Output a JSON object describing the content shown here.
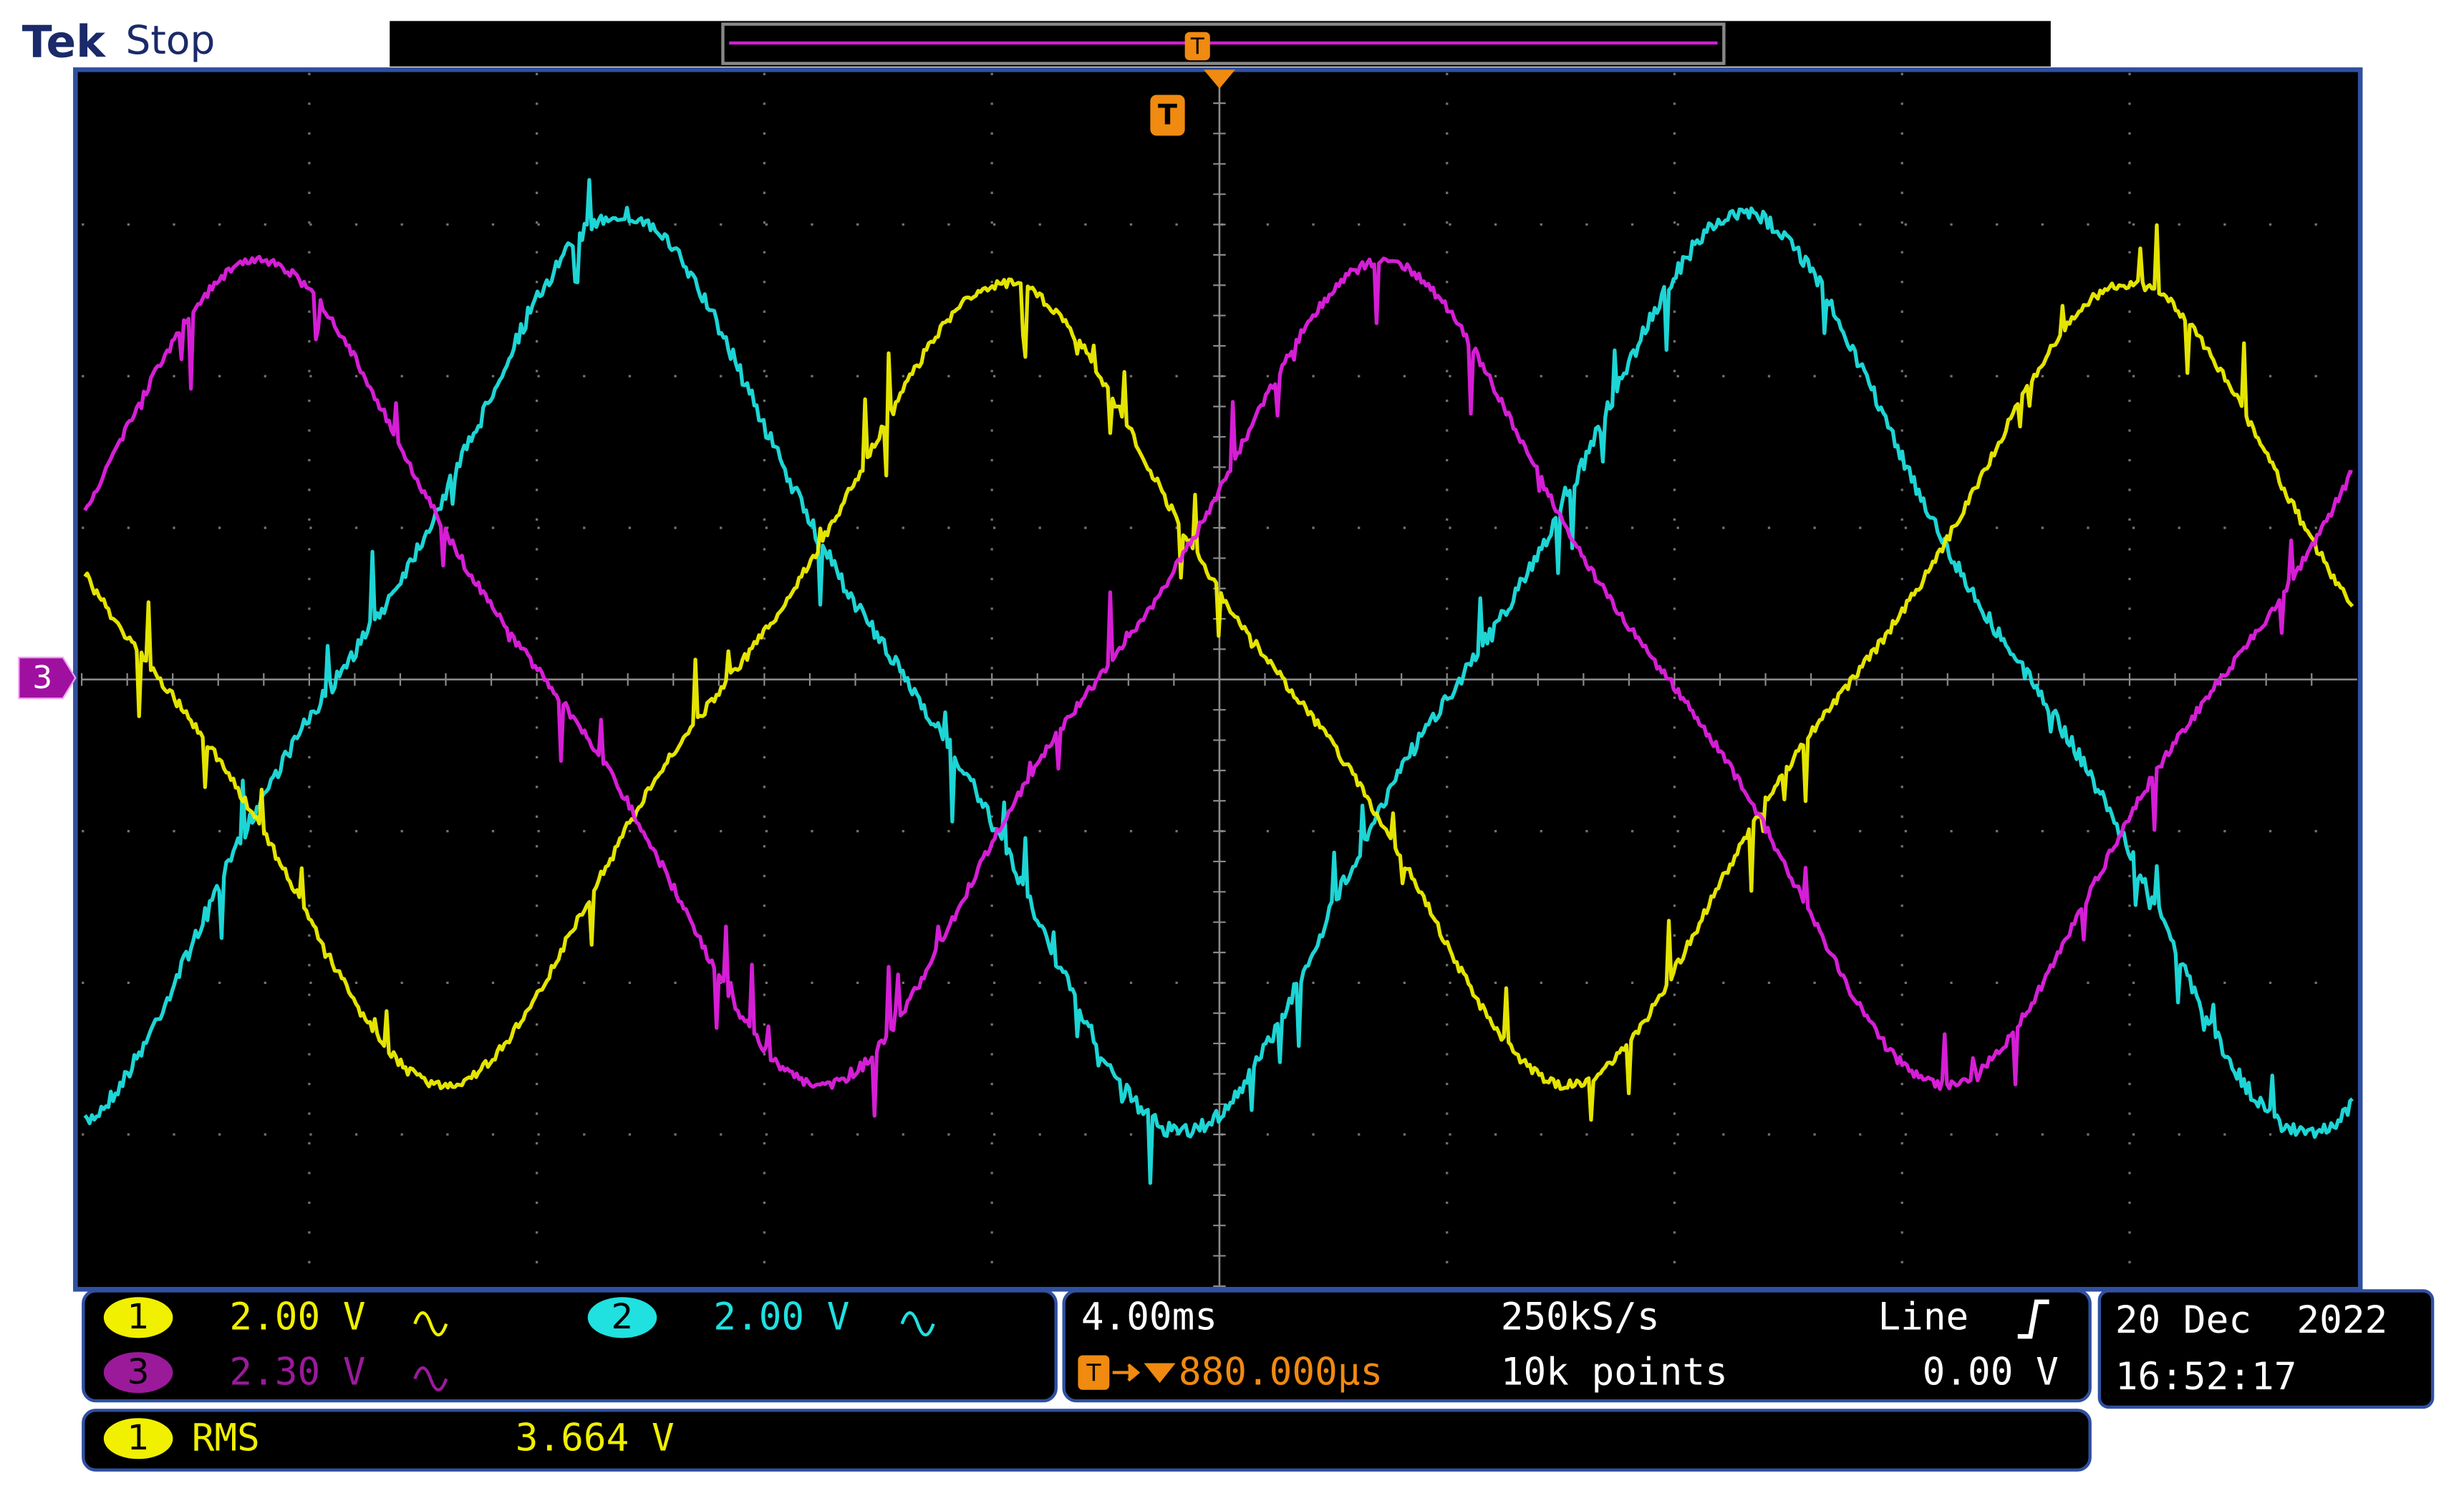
{
  "header": {
    "brand": "Tek",
    "status": "Stop"
  },
  "markers": {
    "trigger": "T",
    "record_trigger": "T",
    "channel_ground": "3"
  },
  "channels": [
    {
      "number": "1",
      "scale": "2.00 V"
    },
    {
      "number": "2",
      "scale": "2.00 V"
    },
    {
      "number": "3",
      "scale": "2.30 V"
    }
  ],
  "timebase": {
    "scale": "4.00ms",
    "trigger_icon": "T",
    "position": "880.000µs",
    "sample_rate": "250kS/s",
    "record_length": "10k points",
    "trigger_source": "Line",
    "trigger_level": "0.00 V"
  },
  "clock": {
    "date": "20 Dec  2022",
    "time": "16:52:17"
  },
  "measurement": {
    "channel": "1",
    "name": "RMS",
    "value": "3.664 V"
  }
}
